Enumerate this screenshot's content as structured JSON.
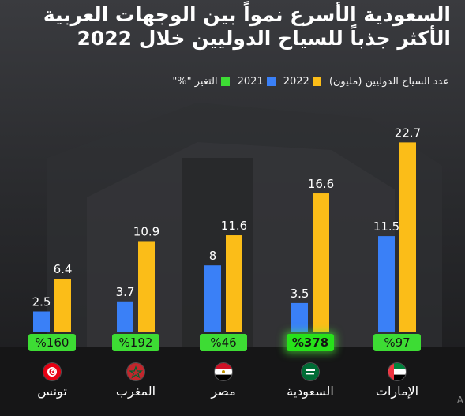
{
  "title_lines": [
    "السعودية الأسرع نمواً بين الوجهات العربية",
    "الأكثر جذباً للسياح الدوليين خلال 2022"
  ],
  "legend": {
    "series_title": "عدد السياح الدوليين (مليون)",
    "label_2022": "2022",
    "label_2021": "2021",
    "label_change": "التغير \"%\""
  },
  "colors": {
    "y2021": "#3a80f7",
    "y2022": "#fbbd18",
    "change": "#3ddc34"
  },
  "chart_data": {
    "type": "bar",
    "title": "السعودية الأسرع نمواً بين الوجهات العربية الأكثر جذباً للسياح الدوليين خلال 2022",
    "ylabel": "عدد السياح الدوليين (مليون)",
    "categories": [
      "الإمارات",
      "السعودية",
      "مصر",
      "المغرب",
      "تونس"
    ],
    "series": [
      {
        "name": "2021",
        "values": [
          11.5,
          3.5,
          8,
          3.7,
          2.5
        ]
      },
      {
        "name": "2022",
        "values": [
          22.7,
          16.6,
          11.6,
          10.9,
          6.4
        ]
      }
    ],
    "change_labels": [
      "%97",
      "%378",
      "%46",
      "%192",
      "%160"
    ],
    "highlight": "السعودية",
    "flag_icons": [
      "uae-flag-icon",
      "saudi-flag-icon",
      "egypt-flag-icon",
      "morocco-flag-icon",
      "tunisia-flag-icon"
    ]
  },
  "watermark": "A"
}
